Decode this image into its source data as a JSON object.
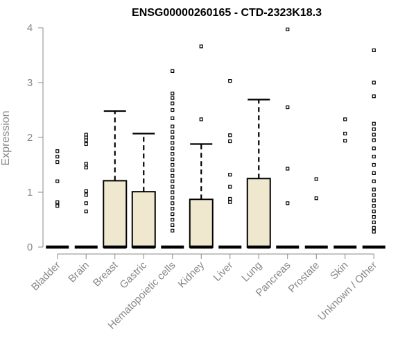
{
  "chart_data": {
    "type": "box",
    "title": "ENSG00000260165 - CTD-2323K18.3",
    "xlabel": "",
    "ylabel": "Expression",
    "ylim": [
      0,
      4
    ],
    "yticks": [
      0,
      1,
      2,
      3,
      4
    ],
    "box_fill": "#efe8cf",
    "grid": false,
    "categories": [
      "Bladder",
      "Brain",
      "Breast",
      "Gastric",
      "Hematopoietic cells",
      "Kidney",
      "Liver",
      "Lung",
      "Pancreas",
      "Prostate",
      "Skin",
      "Unknown / Other"
    ],
    "boxes": [
      {
        "name": "Bladder",
        "q1": 0,
        "median": 0,
        "q3": 0,
        "whisker_low": 0,
        "whisker_high": 0,
        "outliers": [
          0.75,
          0.8,
          0.82,
          1.2,
          1.55,
          1.65,
          1.75
        ]
      },
      {
        "name": "Brain",
        "q1": 0,
        "median": 0,
        "q3": 0,
        "whisker_low": 0,
        "whisker_high": 0,
        "outliers": [
          0.65,
          0.8,
          0.95,
          1.02,
          1.45,
          1.52,
          1.88,
          1.95,
          2.0,
          2.05
        ]
      },
      {
        "name": "Breast",
        "q1": 0,
        "median": 0,
        "q3": 1.21,
        "whisker_low": 0,
        "whisker_high": 2.48,
        "outliers": []
      },
      {
        "name": "Gastric",
        "q1": 0,
        "median": 0,
        "q3": 1.01,
        "whisker_low": 0,
        "whisker_high": 2.07,
        "outliers": []
      },
      {
        "name": "Hematopoietic cells",
        "q1": 0,
        "median": 0,
        "q3": 0,
        "whisker_low": 0,
        "whisker_high": 0,
        "outliers": [
          0.3,
          0.4,
          0.5,
          0.6,
          0.7,
          0.8,
          0.9,
          1.0,
          1.1,
          1.2,
          1.3,
          1.4,
          1.5,
          1.6,
          1.7,
          1.8,
          1.9,
          2.0,
          2.1,
          2.2,
          2.35,
          2.5,
          2.62,
          2.72,
          2.8,
          3.21
        ]
      },
      {
        "name": "Kidney",
        "q1": 0,
        "median": 0,
        "q3": 0.87,
        "whisker_low": 0,
        "whisker_high": 1.88,
        "outliers": [
          2.33,
          3.66
        ]
      },
      {
        "name": "Liver",
        "q1": 0,
        "median": 0,
        "q3": 0,
        "whisker_low": 0,
        "whisker_high": 0,
        "outliers": [
          0.82,
          0.88,
          1.1,
          1.32,
          1.93,
          2.04,
          3.03
        ]
      },
      {
        "name": "Lung",
        "q1": 0,
        "median": 0,
        "q3": 1.25,
        "whisker_low": 0,
        "whisker_high": 2.69,
        "outliers": []
      },
      {
        "name": "Pancreas",
        "q1": 0,
        "median": 0,
        "q3": 0,
        "whisker_low": 0,
        "whisker_high": 0,
        "outliers": [
          0.8,
          1.43,
          2.55,
          3.97
        ]
      },
      {
        "name": "Prostate",
        "q1": 0,
        "median": 0,
        "q3": 0,
        "whisker_low": 0,
        "whisker_high": 0,
        "outliers": [
          0.89,
          1.24
        ]
      },
      {
        "name": "Skin",
        "q1": 0,
        "median": 0,
        "q3": 0,
        "whisker_low": 0,
        "whisker_high": 0,
        "outliers": [
          1.94,
          2.07,
          2.33
        ]
      },
      {
        "name": "Unknown / Other",
        "q1": 0,
        "median": 0,
        "q3": 0,
        "whisker_low": 0,
        "whisker_high": 0,
        "outliers": [
          0.28,
          0.35,
          0.45,
          0.55,
          0.65,
          0.75,
          0.85,
          0.95,
          1.05,
          1.2,
          1.35,
          1.5,
          1.65,
          1.8,
          1.95,
          2.05,
          2.15,
          2.25,
          2.75,
          3.0,
          3.59
        ]
      }
    ]
  }
}
